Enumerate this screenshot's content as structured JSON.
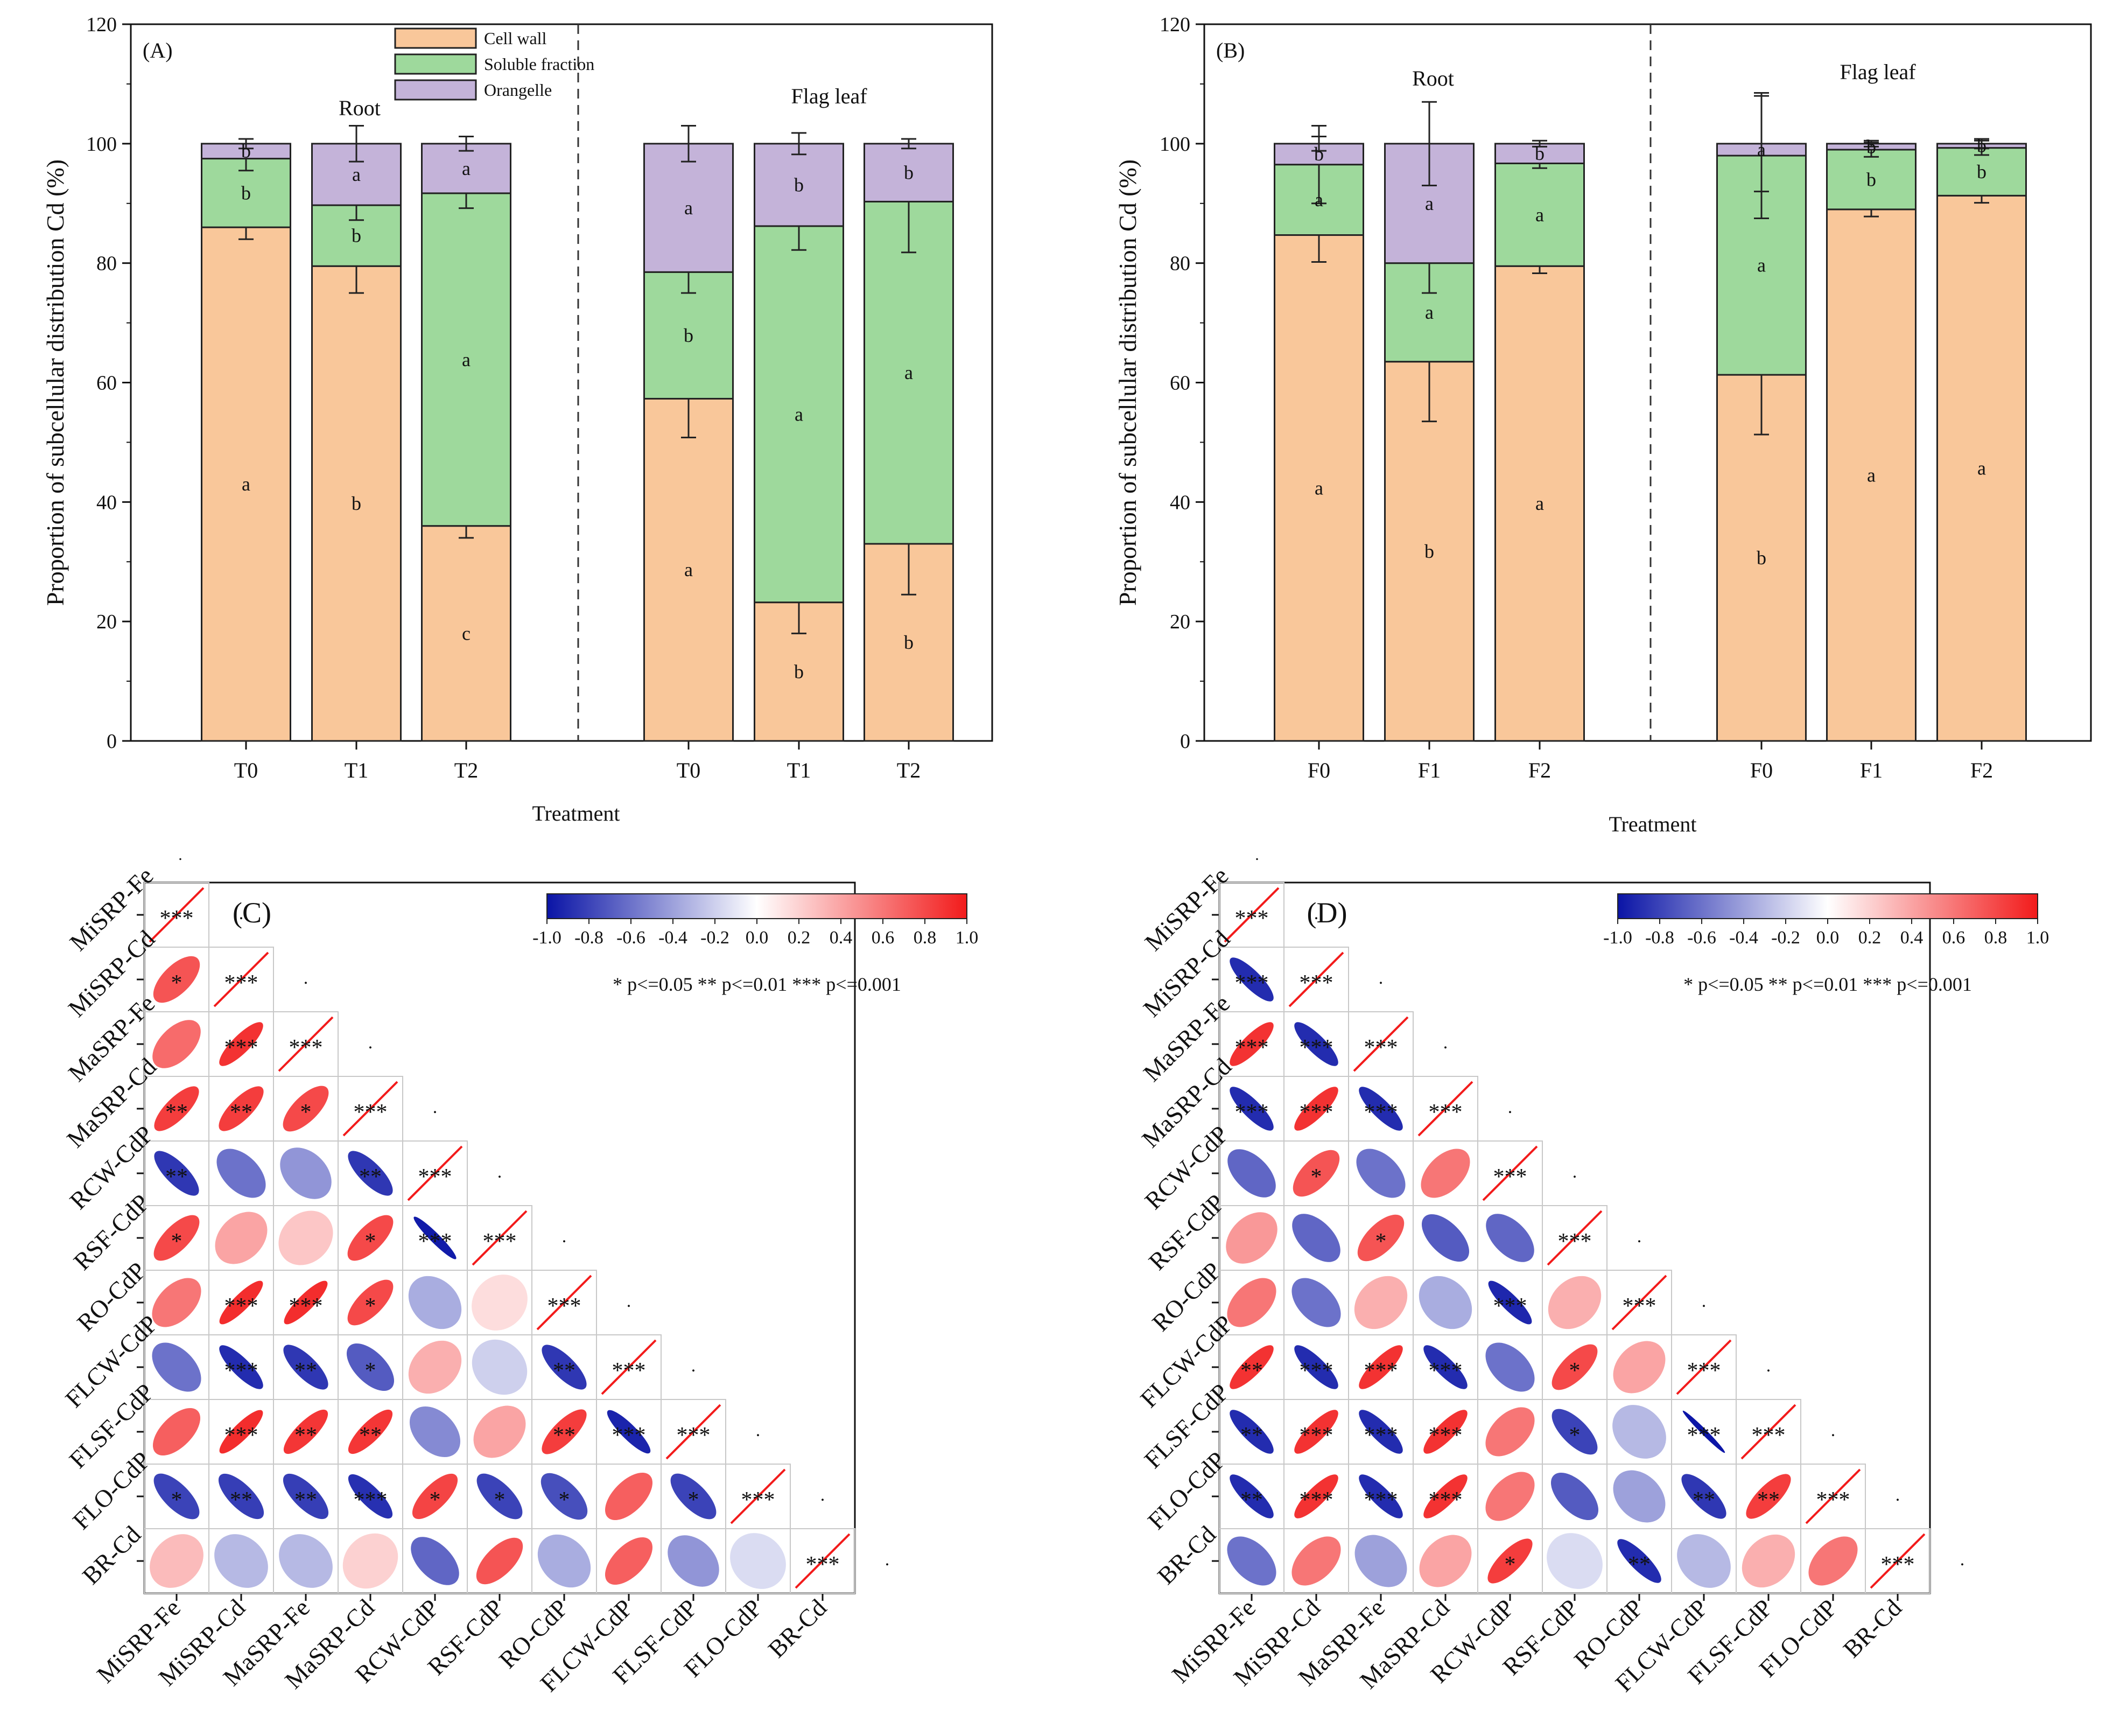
{
  "colors": {
    "cell_wall": "#f9c79a",
    "soluble": "#9ed99c",
    "organelle": "#c4b3d9",
    "neg": "#0a14a6",
    "pos": "#f21b1b",
    "axis": "#111111",
    "grid": "#c8c8c8"
  },
  "chart_data": [
    {
      "id": "A",
      "type": "bar",
      "stacked": true,
      "panel_label": "(A)",
      "ylabel": "Proportion of subcellular distribution  Cd (%)",
      "xlabel": "Treatment",
      "ylim": [
        0,
        120
      ],
      "yticks": [
        "0",
        "20",
        "40",
        "60",
        "80",
        "100",
        "120"
      ],
      "legend": [
        "Cell wall",
        "Soluble fraction",
        "Orangelle"
      ],
      "groups": [
        "Root",
        "Flag leaf"
      ],
      "categories": [
        "T0",
        "T1",
        "T2",
        "T0",
        "T1",
        "T2"
      ],
      "series": [
        {
          "name": "Cell wall",
          "values": [
            86,
            79.5,
            36,
            57.3,
            23.2,
            33
          ],
          "errors": [
            2,
            4.5,
            2,
            6.5,
            5.2,
            8.5
          ],
          "letters": [
            "a",
            "b",
            "c",
            "a",
            "b",
            "b"
          ]
        },
        {
          "name": "Soluble fraction",
          "values": [
            11.5,
            10.2,
            55.7,
            21.2,
            63,
            57.3
          ],
          "errors": [
            2,
            2.5,
            2.5,
            3.5,
            4,
            8.5
          ],
          "letters": [
            "b",
            "b",
            "a",
            "b",
            "a",
            "a"
          ]
        },
        {
          "name": "Orangelle",
          "values": [
            2.5,
            10.3,
            8.3,
            21.5,
            13.8,
            9.7
          ],
          "errors": [
            0.8,
            3,
            1.2,
            3,
            1.8,
            0.8
          ],
          "letters": [
            "b",
            "a",
            "a",
            "a",
            "b",
            "b"
          ]
        }
      ]
    },
    {
      "id": "B",
      "type": "bar",
      "stacked": true,
      "panel_label": "(B)",
      "ylabel": "Proportion of subcellular distribution  Cd (%)",
      "xlabel": "Treatment",
      "ylim": [
        0,
        120
      ],
      "yticks": [
        "0",
        "20",
        "40",
        "60",
        "80",
        "100",
        "120"
      ],
      "groups": [
        "Root",
        "Flag leaf"
      ],
      "categories": [
        "F0",
        "F1",
        "F2",
        "F0",
        "F1",
        "F2"
      ],
      "series": [
        {
          "name": "Cell wall",
          "values": [
            84.7,
            63.5,
            79.5,
            61.3,
            89,
            91.3
          ],
          "errors": [
            4.5,
            10,
            1.2,
            10,
            1.2,
            1.2
          ],
          "letters": [
            "a",
            "b",
            "a",
            "b",
            "a",
            "a"
          ]
        },
        {
          "name": "Soluble fraction",
          "values": [
            11.8,
            16.5,
            17.2,
            36.7,
            10,
            8
          ],
          "errors": [
            6.5,
            5,
            0.8,
            10.5,
            1.2,
            1.2
          ],
          "letters": [
            "a",
            "a",
            "a",
            "a",
            "b",
            "b"
          ]
        },
        {
          "name": "Orangelle",
          "values": [
            3.5,
            20,
            3.3,
            2,
            1,
            0.7
          ],
          "errors": [
            1.2,
            7,
            0.5,
            8,
            0.5,
            0.8
          ],
          "letters": [
            "b",
            "a",
            "b",
            "a",
            "b",
            "b"
          ]
        }
      ]
    },
    {
      "id": "C",
      "type": "heatmap",
      "panel_label": "(C)",
      "variables": [
        "MiSRP-Fe",
        "MiSRP-Cd",
        "MaSRP-Fe",
        "MaSRP-Cd",
        "RCW-CdP",
        "RSF-CdP",
        "RO-CdP",
        "FLCW-CdP",
        "FLSF-CdP",
        "FLO-CdP",
        "BR-Cd"
      ],
      "colorbar_ticks": [
        "-1.0",
        "-0.8",
        "-0.6",
        "-0.4",
        "-0.2",
        "0.0",
        "0.2",
        "0.4",
        "0.6",
        "0.8",
        "1.0"
      ],
      "sig_legend": "* p<=0.05  ** p<=0.01  *** p<=0.001",
      "matrix": [
        [
          1
        ],
        [
          0.75,
          1
        ],
        [
          0.65,
          0.9,
          1
        ],
        [
          0.85,
          0.85,
          0.8,
          1
        ],
        [
          -0.85,
          -0.6,
          -0.45,
          -0.85,
          1
        ],
        [
          0.8,
          0.4,
          0.25,
          0.8,
          -0.97,
          1
        ],
        [
          0.6,
          0.92,
          0.92,
          0.8,
          -0.35,
          0.15,
          1
        ],
        [
          -0.6,
          -0.9,
          -0.85,
          -0.7,
          0.35,
          -0.2,
          -0.85,
          1
        ],
        [
          0.7,
          0.92,
          0.88,
          0.88,
          -0.5,
          0.4,
          0.85,
          -0.93,
          1
        ],
        [
          -0.8,
          -0.82,
          -0.82,
          -0.88,
          0.82,
          -0.8,
          -0.75,
          0.7,
          -0.8,
          1
        ],
        [
          0.3,
          -0.3,
          -0.3,
          0.2,
          -0.65,
          0.75,
          -0.35,
          0.7,
          -0.45,
          -0.15,
          1
        ]
      ],
      "stars": [
        [
          "***"
        ],
        [
          "*",
          "***"
        ],
        [
          "",
          "***",
          "***"
        ],
        [
          "**",
          "**",
          "*",
          "***"
        ],
        [
          "**",
          "",
          "",
          "**",
          "***"
        ],
        [
          "*",
          "",
          "",
          "*",
          "***",
          "***"
        ],
        [
          "",
          "***",
          "***",
          "*",
          "",
          "",
          "***"
        ],
        [
          "",
          "***",
          "**",
          "*",
          "",
          "",
          "**",
          "***"
        ],
        [
          "",
          "***",
          "**",
          "**",
          "",
          "",
          "**",
          "***",
          "***"
        ],
        [
          "*",
          "**",
          "**",
          "***",
          "*",
          "*",
          "*",
          "",
          "*",
          "***"
        ],
        [
          "",
          "",
          "",
          "",
          "",
          "",
          "",
          "",
          "",
          "",
          "***"
        ]
      ]
    },
    {
      "id": "D",
      "type": "heatmap",
      "panel_label": "(D)",
      "variables": [
        "MiSRP-Fe",
        "MiSRP-Cd",
        "MaSRP-Fe",
        "MaSRP-Cd",
        "RCW-CdP",
        "RSF-CdP",
        "RO-CdP",
        "FLCW-CdP",
        "FLSF-CdP",
        "FLO-CdP",
        "BR-Cd"
      ],
      "colorbar_ticks": [
        "-1.0",
        "-0.8",
        "-0.6",
        "-0.4",
        "-0.2",
        "0.0",
        "0.2",
        "0.4",
        "0.6",
        "0.8",
        "1.0"
      ],
      "sig_legend": "* p<=0.05  ** p<=0.01  *** p<=0.001",
      "matrix": [
        [
          1
        ],
        [
          -0.9,
          1
        ],
        [
          0.9,
          -0.9,
          1
        ],
        [
          -0.9,
          0.9,
          -0.9,
          1
        ],
        [
          -0.65,
          0.75,
          -0.6,
          0.6,
          1
        ],
        [
          0.45,
          -0.65,
          0.75,
          -0.7,
          -0.65,
          1
        ],
        [
          0.6,
          -0.6,
          0.35,
          -0.35,
          -0.92,
          0.35,
          1
        ],
        [
          0.9,
          -0.9,
          0.9,
          -0.9,
          -0.6,
          0.8,
          0.4,
          1
        ],
        [
          -0.9,
          0.9,
          -0.9,
          0.9,
          0.6,
          -0.8,
          -0.3,
          -0.99,
          1
        ],
        [
          -0.9,
          0.9,
          -0.9,
          0.9,
          0.6,
          -0.7,
          -0.4,
          -0.85,
          0.85,
          1
        ],
        [
          -0.6,
          0.6,
          -0.4,
          0.4,
          0.85,
          -0.15,
          -0.9,
          -0.3,
          0.35,
          0.6,
          1
        ]
      ],
      "stars": [
        [
          "***"
        ],
        [
          "***",
          "***"
        ],
        [
          "***",
          "***",
          "***"
        ],
        [
          "***",
          "***",
          "***",
          "***"
        ],
        [
          "",
          "*",
          "",
          "",
          "***"
        ],
        [
          "",
          "",
          "*",
          "",
          "",
          "***"
        ],
        [
          "",
          "",
          "",
          "",
          "***",
          "",
          "***"
        ],
        [
          "**",
          "***",
          "***",
          "***",
          "",
          "*",
          "",
          "***"
        ],
        [
          "**",
          "***",
          "***",
          "***",
          "",
          "*",
          "",
          "***",
          "***"
        ],
        [
          "**",
          "***",
          "***",
          "***",
          "",
          "",
          "",
          "**",
          "**",
          "***"
        ],
        [
          "",
          "",
          "",
          "",
          "*",
          "",
          "**",
          "",
          "",
          "",
          "***"
        ]
      ]
    }
  ]
}
